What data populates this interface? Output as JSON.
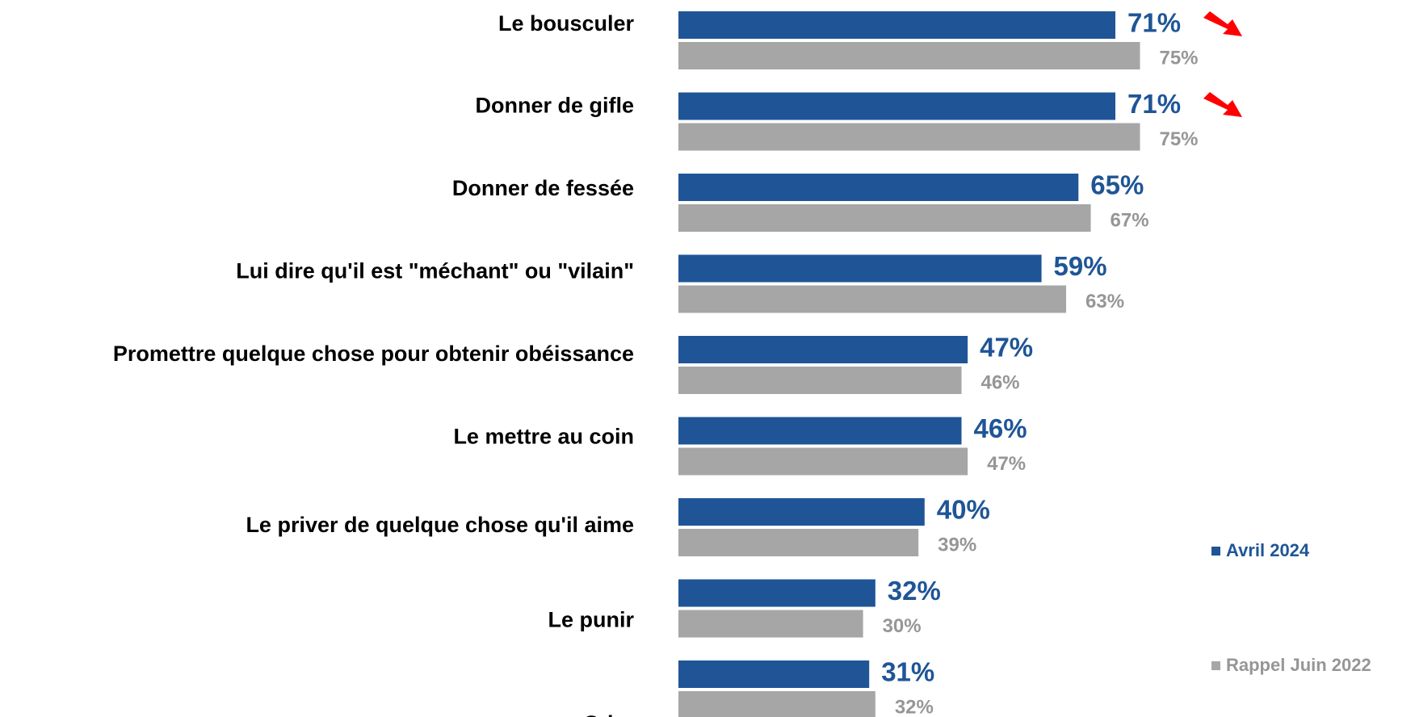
{
  "chart_data": {
    "type": "hbar",
    "categories": [
      "Le bousculer",
      "Donner de gifle",
      "Donner de fessée",
      "Lui dire qu'il est \"méchant\" ou \"vilain\"",
      "Promettre quelque chose pour obtenir obéissance",
      "Le mettre au coin",
      "Le priver de quelque chose qu'il aime",
      "Le punir",
      "Crier"
    ],
    "xlim": [
      0,
      100
    ],
    "series": [
      {
        "name": "Avril 2024",
        "color": "#1f5597",
        "values": [
          71,
          71,
          65,
          59,
          47,
          46,
          40,
          32,
          31
        ],
        "value_labels": [
          "71%",
          "71%",
          "65%",
          "59%",
          "47%",
          "46%",
          "40%",
          "32%",
          "31%"
        ]
      },
      {
        "name": "Rappel Juin 2022",
        "color": "#a6a6a6",
        "values": [
          75,
          75,
          67,
          63,
          46,
          47,
          39,
          30,
          32
        ],
        "value_labels": [
          "75%",
          "75%",
          "67%",
          "63%",
          "46%",
          "47%",
          "39%",
          "30%",
          "32%"
        ]
      }
    ]
  }
}
